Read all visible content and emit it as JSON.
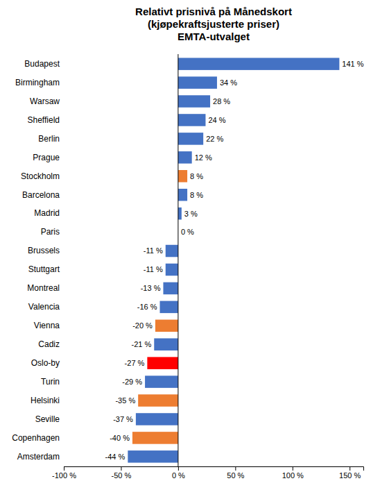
{
  "chart_data": {
    "type": "bar",
    "orientation": "horizontal",
    "title": "Relativt prisnivå på Månedskort\n(kjøpekraftsjusterte priser)\nEMTA-utvalget",
    "categories": [
      "Budapest",
      "Birmingham",
      "Warsaw",
      "Sheffield",
      "Berlin",
      "Prague",
      "Stockholm",
      "Barcelona",
      "Madrid",
      "Paris",
      "Brussels",
      "Stuttgart",
      "Montreal",
      "Valencia",
      "Vienna",
      "Cadiz",
      "Oslo-by",
      "Turin",
      "Helsinki",
      "Seville",
      "Copenhagen",
      "Amsterdam"
    ],
    "values": [
      141,
      34,
      28,
      24,
      22,
      12,
      8,
      8,
      3,
      0,
      -11,
      -11,
      -13,
      -16,
      -20,
      -21,
      -27,
      -29,
      -35,
      -37,
      -40,
      -44
    ],
    "value_labels": [
      "141 %",
      "34 %",
      "28 %",
      "24 %",
      "22 %",
      "12 %",
      "8 %",
      "8 %",
      "3 %",
      "0 %",
      "-11 %",
      "-11 %",
      "-13 %",
      "-16 %",
      "-20 %",
      "-21 %",
      "-27 %",
      "-29 %",
      "-35 %",
      "-37 %",
      "-40 %",
      "-44 %"
    ],
    "colors": [
      "#4472C4",
      "#4472C4",
      "#4472C4",
      "#4472C4",
      "#4472C4",
      "#4472C4",
      "#ED7D31",
      "#4472C4",
      "#4472C4",
      "#4472C4",
      "#4472C4",
      "#4472C4",
      "#4472C4",
      "#4472C4",
      "#ED7D31",
      "#4472C4",
      "#FF0000",
      "#4472C4",
      "#ED7D31",
      "#4472C4",
      "#ED7D31",
      "#4472C4"
    ],
    "xlim": [
      -100,
      162
    ],
    "xticks": [
      {
        "value": -100,
        "label": "-100 %"
      },
      {
        "value": -50,
        "label": "-50 %"
      },
      {
        "value": 0,
        "label": "0 %"
      },
      {
        "value": 50,
        "label": "50 %"
      },
      {
        "value": 100,
        "label": "100 %"
      },
      {
        "value": 150,
        "label": "150 %"
      }
    ],
    "data_labels": true,
    "grid": false
  }
}
